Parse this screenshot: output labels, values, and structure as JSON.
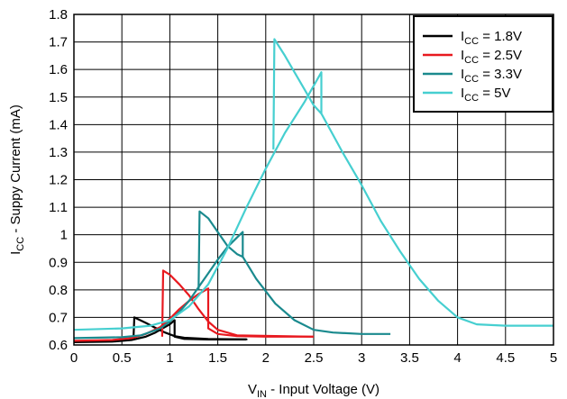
{
  "chart_data": {
    "type": "line",
    "title": "",
    "xlabel": {
      "main": "V",
      "sub": "IN",
      "rest": " - Input Voltage (V)"
    },
    "ylabel": {
      "main": "I",
      "sub": "CC",
      "rest": " - Suppy Current (mA)"
    },
    "xlim": [
      0,
      5
    ],
    "ylim": [
      0.6,
      1.8
    ],
    "x_ticks": [
      "0",
      "0.5",
      "1",
      "1.5",
      "2",
      "2.5",
      "3",
      "3.5",
      "4",
      "4.5",
      "5"
    ],
    "y_ticks": [
      "0.6",
      "0.7",
      "0.8",
      "0.9",
      "1",
      "1.1",
      "1.2",
      "1.3",
      "1.4",
      "1.5",
      "1.6",
      "1.7",
      "1.8"
    ],
    "grid": true,
    "legend_position": "top-right",
    "series": [
      {
        "name": {
          "main": "I",
          "sub": "CC",
          "rest": " = 1.8V"
        },
        "color": "#000000",
        "points": [
          [
            0,
            0.61
          ],
          [
            0.4,
            0.612
          ],
          [
            0.6,
            0.618
          ],
          [
            0.75,
            0.63
          ],
          [
            0.85,
            0.645
          ],
          [
            0.95,
            0.665
          ],
          [
            1.0,
            0.675
          ],
          [
            1.05,
            0.69
          ],
          [
            1.05,
            0.63
          ],
          [
            1.15,
            0.622
          ],
          [
            1.4,
            0.62
          ],
          [
            1.8,
            0.62
          ],
          [
            1.8,
            0.618
          ]
        ],
        "points_return": [
          [
            0.62,
            0.618
          ],
          [
            0.63,
            0.7
          ],
          [
            0.75,
            0.68
          ],
          [
            0.85,
            0.662
          ],
          [
            0.95,
            0.645
          ],
          [
            1.05,
            0.632
          ],
          [
            1.15,
            0.626
          ],
          [
            1.4,
            0.622
          ],
          [
            1.8,
            0.62
          ]
        ]
      },
      {
        "name": {
          "main": "I",
          "sub": "CC",
          "rest": " = 2.5V"
        },
        "color": "#e8191f",
        "points": [
          [
            0,
            0.615
          ],
          [
            0.4,
            0.618
          ],
          [
            0.6,
            0.625
          ],
          [
            0.75,
            0.64
          ],
          [
            0.9,
            0.665
          ],
          [
            1.0,
            0.695
          ],
          [
            1.1,
            0.73
          ],
          [
            1.2,
            0.76
          ],
          [
            1.3,
            0.785
          ],
          [
            1.4,
            0.805
          ],
          [
            1.4,
            0.66
          ],
          [
            1.5,
            0.64
          ],
          [
            1.7,
            0.632
          ],
          [
            2.0,
            0.63
          ],
          [
            2.5,
            0.63
          ]
        ],
        "points_return": [
          [
            0.92,
            0.63
          ],
          [
            0.93,
            0.87
          ],
          [
            1.0,
            0.855
          ],
          [
            1.1,
            0.82
          ],
          [
            1.2,
            0.78
          ],
          [
            1.3,
            0.73
          ],
          [
            1.4,
            0.685
          ],
          [
            1.5,
            0.655
          ],
          [
            1.7,
            0.635
          ],
          [
            2.5,
            0.63
          ]
        ]
      },
      {
        "name": {
          "main": "I",
          "sub": "CC",
          "rest": " = 3.3V"
        },
        "color": "#1a8a8e",
        "points": [
          [
            0,
            0.625
          ],
          [
            0.5,
            0.628
          ],
          [
            0.7,
            0.635
          ],
          [
            0.9,
            0.66
          ],
          [
            1.0,
            0.685
          ],
          [
            1.1,
            0.72
          ],
          [
            1.2,
            0.76
          ],
          [
            1.3,
            0.81
          ],
          [
            1.4,
            0.86
          ],
          [
            1.5,
            0.91
          ],
          [
            1.6,
            0.955
          ],
          [
            1.7,
            0.99
          ],
          [
            1.76,
            1.01
          ],
          [
            1.76,
            0.92
          ],
          [
            1.9,
            0.84
          ],
          [
            2.1,
            0.75
          ],
          [
            2.3,
            0.69
          ],
          [
            2.5,
            0.655
          ],
          [
            2.7,
            0.645
          ],
          [
            3.0,
            0.64
          ],
          [
            3.3,
            0.64
          ]
        ],
        "points_return": [
          [
            1.3,
            0.8
          ],
          [
            1.31,
            1.085
          ],
          [
            1.4,
            1.06
          ],
          [
            1.5,
            1.01
          ],
          [
            1.6,
            0.96
          ],
          [
            1.7,
            0.93
          ],
          [
            1.76,
            0.92
          ]
        ]
      },
      {
        "name": {
          "main": "I",
          "sub": "CC",
          "rest": " = 5V"
        },
        "color": "#46cfd0",
        "points": [
          [
            0,
            0.655
          ],
          [
            0.5,
            0.66
          ],
          [
            0.8,
            0.67
          ],
          [
            1.0,
            0.69
          ],
          [
            1.2,
            0.74
          ],
          [
            1.4,
            0.82
          ],
          [
            1.6,
            0.95
          ],
          [
            1.8,
            1.1
          ],
          [
            2.0,
            1.24
          ],
          [
            2.2,
            1.37
          ],
          [
            2.4,
            1.48
          ],
          [
            2.58,
            1.59
          ],
          [
            2.58,
            1.44
          ],
          [
            2.8,
            1.3
          ],
          [
            3.0,
            1.18
          ],
          [
            3.2,
            1.05
          ],
          [
            3.4,
            0.94
          ],
          [
            3.6,
            0.84
          ],
          [
            3.8,
            0.76
          ],
          [
            4.0,
            0.7
          ],
          [
            4.2,
            0.675
          ],
          [
            4.5,
            0.67
          ],
          [
            5.0,
            0.67
          ]
        ],
        "points_return": [
          [
            2.08,
            1.31
          ],
          [
            2.09,
            1.71
          ],
          [
            2.2,
            1.65
          ],
          [
            2.3,
            1.59
          ],
          [
            2.4,
            1.53
          ],
          [
            2.5,
            1.47
          ],
          [
            2.58,
            1.44
          ]
        ]
      }
    ]
  }
}
